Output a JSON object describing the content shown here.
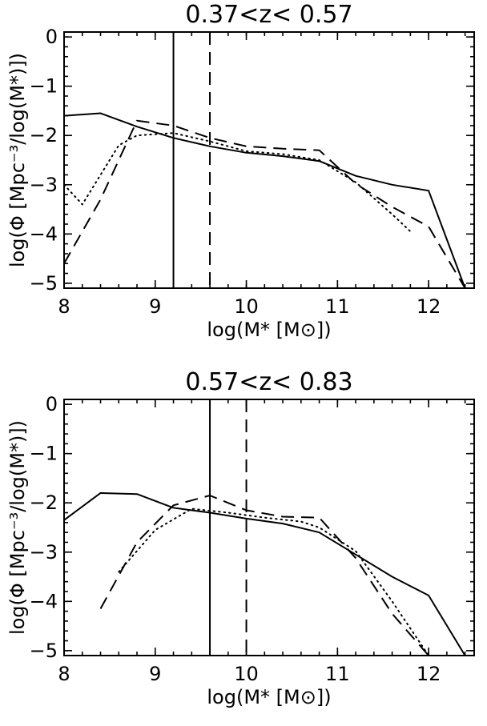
{
  "chart_data": [
    {
      "type": "line",
      "title": "0.37<z< 0.57",
      "xlabel": "log(M* [M⊙])",
      "ylabel": "log(Φ [Mpc⁻³/log(M*)])",
      "xlim": [
        8.0,
        12.5
      ],
      "ylim": [
        -5.1,
        0.1
      ],
      "xticks": [
        8,
        9,
        10,
        11,
        12
      ],
      "yticks": [
        0,
        -1,
        -2,
        -3,
        -4,
        -5
      ],
      "grid": false,
      "series": [
        {
          "style": "solid",
          "x": [
            8.0,
            8.4,
            8.8,
            9.2,
            9.6,
            10.0,
            10.4,
            10.8,
            11.2,
            11.6,
            12.0,
            12.4
          ],
          "y": [
            -1.6,
            -1.55,
            -1.82,
            -2.05,
            -2.22,
            -2.35,
            -2.42,
            -2.52,
            -2.82,
            -3.0,
            -3.12,
            -5.1
          ]
        },
        {
          "style": "dashed",
          "x": [
            8.0,
            8.4,
            8.8,
            9.2,
            9.6,
            10.0,
            10.4,
            10.8,
            11.2,
            11.6,
            12.0,
            12.4
          ],
          "y": [
            -4.6,
            -3.3,
            -1.7,
            -1.8,
            -2.05,
            -2.22,
            -2.27,
            -2.3,
            -2.98,
            -3.45,
            -3.85,
            -5.1
          ]
        },
        {
          "style": "dotted",
          "x": [
            8.0,
            8.2,
            8.4,
            8.6,
            8.8,
            9.2,
            9.6,
            10.0,
            10.4,
            10.8,
            11.2,
            11.6,
            11.8
          ],
          "y": [
            -3.0,
            -3.4,
            -2.8,
            -2.2,
            -2.0,
            -1.95,
            -2.12,
            -2.32,
            -2.38,
            -2.5,
            -2.95,
            -3.6,
            -3.95
          ]
        }
      ],
      "vlines": [
        {
          "x": 9.2,
          "style": "solid"
        },
        {
          "x": 9.6,
          "style": "dashed"
        }
      ]
    },
    {
      "type": "line",
      "title": "0.57<z< 0.83",
      "xlabel": "log(M* [M⊙])",
      "ylabel": "log(Φ [Mpc⁻³/log(M*)])",
      "xlim": [
        8.0,
        12.5
      ],
      "ylim": [
        -5.1,
        0.1
      ],
      "xticks": [
        8,
        9,
        10,
        11,
        12
      ],
      "yticks": [
        0,
        -1,
        -2,
        -3,
        -4,
        -5
      ],
      "grid": false,
      "series": [
        {
          "style": "solid",
          "x": [
            8.0,
            8.4,
            8.8,
            9.2,
            9.6,
            10.0,
            10.4,
            10.8,
            11.2,
            11.6,
            12.0,
            12.4
          ],
          "y": [
            -2.35,
            -1.8,
            -1.82,
            -2.1,
            -2.2,
            -2.32,
            -2.42,
            -2.6,
            -3.05,
            -3.5,
            -3.88,
            -5.1
          ]
        },
        {
          "style": "dashed",
          "x": [
            8.4,
            8.8,
            9.2,
            9.6,
            10.0,
            10.4,
            10.8,
            11.2,
            11.6,
            12.0
          ],
          "y": [
            -4.15,
            -2.8,
            -2.05,
            -1.85,
            -2.15,
            -2.28,
            -2.3,
            -3.12,
            -4.25,
            -5.1
          ]
        },
        {
          "style": "dotted",
          "x": [
            8.6,
            9.0,
            9.4,
            9.8,
            10.2,
            10.6,
            10.8,
            11.2,
            11.6,
            12.0
          ],
          "y": [
            -3.4,
            -2.55,
            -2.12,
            -2.2,
            -2.3,
            -2.38,
            -2.5,
            -2.98,
            -4.0,
            -5.1
          ]
        }
      ],
      "vlines": [
        {
          "x": 9.6,
          "style": "solid"
        },
        {
          "x": 10.0,
          "style": "dashed"
        }
      ]
    }
  ]
}
